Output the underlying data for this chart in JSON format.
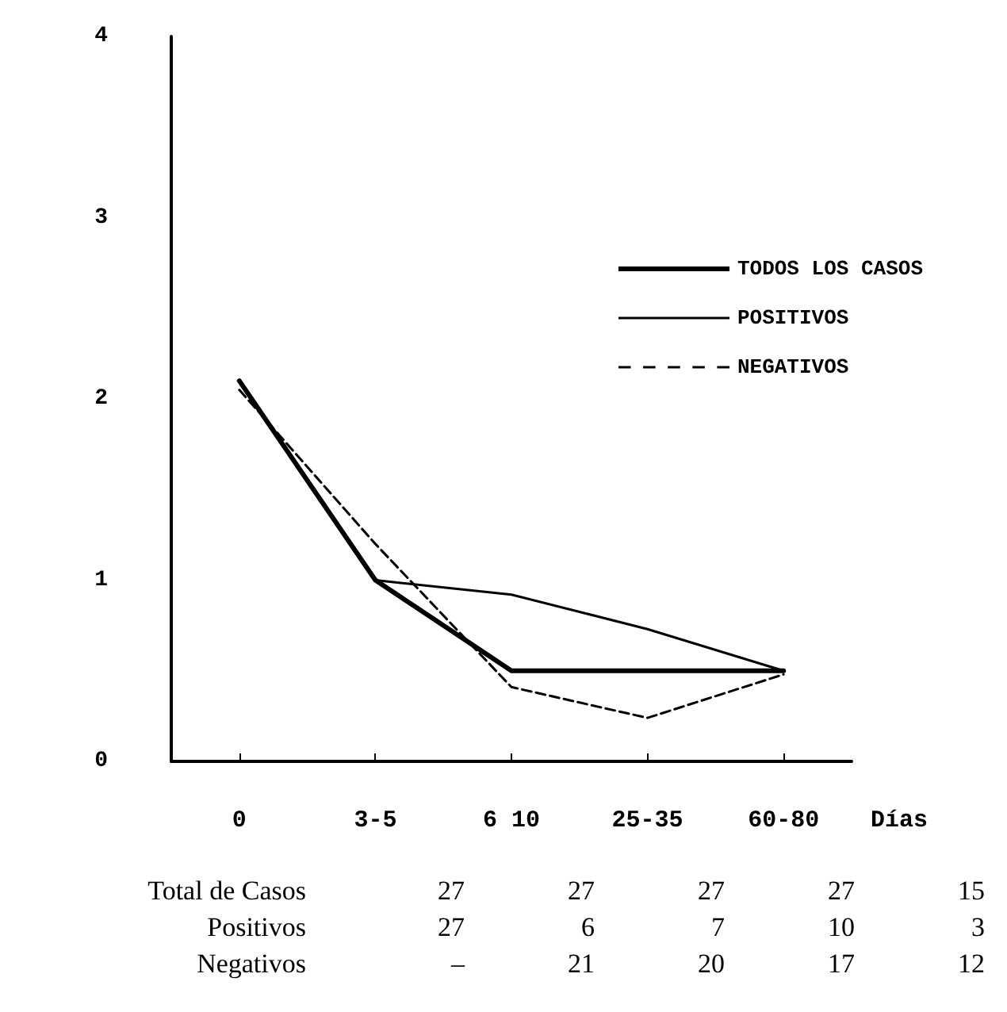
{
  "chart_data": {
    "type": "line",
    "xlabel": "Días",
    "categories": [
      "0",
      "3-5",
      "6 10",
      "25-35",
      "60-80"
    ],
    "series": [
      {
        "name": "TODOS LOS CASOS",
        "color": "#000000",
        "values": [
          2.1,
          1.0,
          0.5,
          0.5,
          0.5
        ],
        "line_style": "solid"
      },
      {
        "name": "POSITIVOS",
        "color": "#000000",
        "values": [
          2.1,
          1.0,
          0.92,
          0.73,
          0.5
        ],
        "line_style": "solid"
      },
      {
        "name": "NEGATIVOS",
        "color": "#000000",
        "values": [
          2.05,
          1.2,
          0.41,
          0.24,
          0.48
        ],
        "line_style": "dashed"
      }
    ],
    "ylim": [
      0,
      4
    ],
    "yticks": [
      0,
      1,
      2,
      3,
      4
    ],
    "grid": false,
    "legend": "top right",
    "marker": "none",
    "annotations": [
      "Total de Casos",
      "27",
      "27",
      "27",
      "27",
      "15",
      "Positivos",
      "27",
      "6",
      "7",
      "10",
      "3",
      "Negativos",
      "–",
      "21",
      "20",
      "17",
      "12"
    ]
  }
}
